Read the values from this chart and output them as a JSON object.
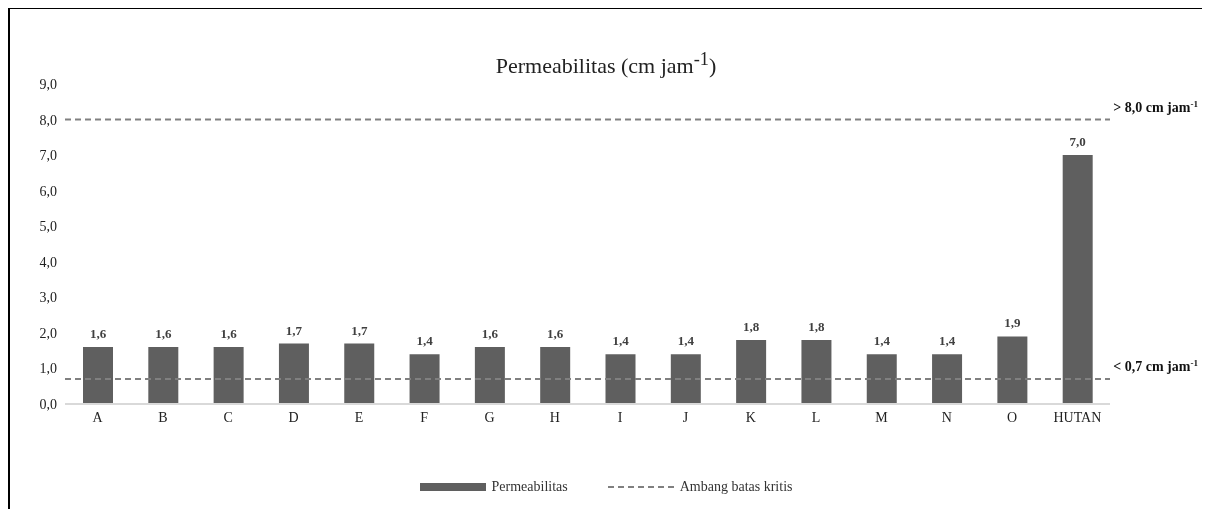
{
  "chart_data": {
    "type": "bar",
    "title": "Permeabilitas (cm jam$^{-1}$)",
    "categories": [
      "A",
      "B",
      "C",
      "D",
      "E",
      "F",
      "G",
      "H",
      "I",
      "J",
      "K",
      "L",
      "M",
      "N",
      "O",
      "HUTAN"
    ],
    "series": [
      {
        "name": "Permeabilitas",
        "color": "#5f5f5f",
        "values": [
          1.6,
          1.6,
          1.6,
          1.7,
          1.7,
          1.4,
          1.6,
          1.6,
          1.4,
          1.4,
          1.8,
          1.8,
          1.4,
          1.4,
          1.9,
          7.0
        ],
        "value_labels": [
          "1,6",
          "1,6",
          "1,6",
          "1,7",
          "1,7",
          "1,4",
          "1,6",
          "1,6",
          "1,4",
          "1,4",
          "1,8",
          "1,8",
          "1,4",
          "1,4",
          "1,9",
          "7,0"
        ]
      }
    ],
    "ylim": [
      0,
      9
    ],
    "yticks": [
      {
        "value": 0,
        "label": "0,0"
      },
      {
        "value": 1,
        "label": "1,0"
      },
      {
        "value": 2,
        "label": "2,0"
      },
      {
        "value": 3,
        "label": "3,0"
      },
      {
        "value": 4,
        "label": "4,0"
      },
      {
        "value": 5,
        "label": "5,0"
      },
      {
        "value": 6,
        "label": "6,0"
      },
      {
        "value": 7,
        "label": "7,0"
      },
      {
        "value": 8,
        "label": "8,0"
      },
      {
        "value": 9,
        "label": "9,0"
      }
    ],
    "ref_lines": [
      {
        "axis": "y",
        "value": 8.0,
        "label": "> 8,0 cm jam$^{-1}$",
        "color": "#808080",
        "line_style": "dashed"
      },
      {
        "axis": "y",
        "value": 0.7,
        "label": "< 0,7 cm jam$^{-1}$",
        "color": "#808080",
        "line_style": "dashed"
      }
    ],
    "annotations": [
      "Ambang batas kritis"
    ],
    "legend": "bottom"
  }
}
